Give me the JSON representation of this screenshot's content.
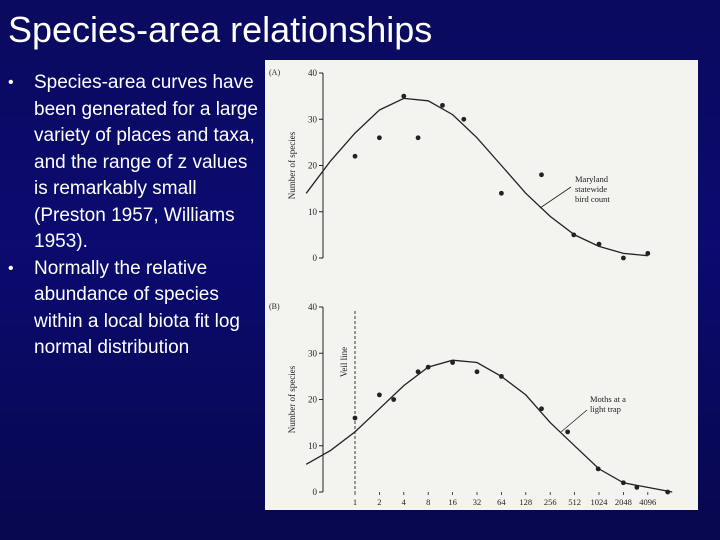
{
  "slide": {
    "title": "Species-area relationships",
    "bullets": [
      "Species-area curves have been generated for a large variety of places and taxa, and the range of z values is remarkably small (Preston 1957, Williams 1953).",
      "Normally the relative abundance of species within a local biota fit log normal distribution"
    ]
  },
  "colors": {
    "slide_background": "#0b0b70",
    "text": "#ffffff",
    "figure_background": "#f3f3ef",
    "ink": "#222222"
  },
  "chart_data": [
    {
      "type": "scatter",
      "panel_label": "(A)",
      "ylabel": "Number of species",
      "ylim": [
        0,
        40
      ],
      "yticks": [
        0,
        10,
        20,
        30,
        40
      ],
      "annotation": [
        "Maryland",
        "statewide",
        "bird count"
      ],
      "points": [
        {
          "x": 1,
          "y": 22
        },
        {
          "x": 2,
          "y": 26
        },
        {
          "x": 4,
          "y": 35
        },
        {
          "x": 6,
          "y": 26
        },
        {
          "x": 12,
          "y": 33
        },
        {
          "x": 22,
          "y": 30
        },
        {
          "x": 64,
          "y": 14
        },
        {
          "x": 200,
          "y": 18
        },
        {
          "x": 500,
          "y": 5
        },
        {
          "x": 1024,
          "y": 3
        },
        {
          "x": 2048,
          "y": 0
        },
        {
          "x": 4096,
          "y": 1
        }
      ],
      "fit_curve": [
        {
          "x": 0.25,
          "y": 14
        },
        {
          "x": 0.5,
          "y": 21
        },
        {
          "x": 1,
          "y": 27
        },
        {
          "x": 2,
          "y": 32
        },
        {
          "x": 4,
          "y": 34.5
        },
        {
          "x": 8,
          "y": 34
        },
        {
          "x": 16,
          "y": 31
        },
        {
          "x": 32,
          "y": 26
        },
        {
          "x": 64,
          "y": 20
        },
        {
          "x": 128,
          "y": 14
        },
        {
          "x": 256,
          "y": 9
        },
        {
          "x": 512,
          "y": 5
        },
        {
          "x": 1024,
          "y": 2.5
        },
        {
          "x": 2048,
          "y": 1
        },
        {
          "x": 4096,
          "y": 0.5
        }
      ]
    },
    {
      "type": "scatter",
      "panel_label": "(B)",
      "ylabel": "Number of species",
      "ylim": [
        0,
        40
      ],
      "yticks": [
        0,
        10,
        20,
        30,
        40
      ],
      "xscale": "log2",
      "xtick_labels": [
        "1",
        "2",
        "4",
        "8",
        "16",
        "32",
        "64",
        "128",
        "256",
        "512",
        "1024",
        "2048",
        "4096"
      ],
      "veil_line": {
        "x": 1,
        "label": "Veil line"
      },
      "annotation": [
        "Moths at a",
        "light trap"
      ],
      "points": [
        {
          "x": 1,
          "y": 16
        },
        {
          "x": 2,
          "y": 21
        },
        {
          "x": 3,
          "y": 20
        },
        {
          "x": 6,
          "y": 26
        },
        {
          "x": 8,
          "y": 27
        },
        {
          "x": 16,
          "y": 28
        },
        {
          "x": 32,
          "y": 26
        },
        {
          "x": 64,
          "y": 25
        },
        {
          "x": 200,
          "y": 18
        },
        {
          "x": 420,
          "y": 13
        },
        {
          "x": 1000,
          "y": 5
        },
        {
          "x": 2048,
          "y": 2
        },
        {
          "x": 3000,
          "y": 1
        },
        {
          "x": 7200,
          "y": 0
        }
      ],
      "fit_curve": [
        {
          "x": 0.25,
          "y": 6
        },
        {
          "x": 0.5,
          "y": 9
        },
        {
          "x": 1,
          "y": 13
        },
        {
          "x": 2,
          "y": 18
        },
        {
          "x": 4,
          "y": 23
        },
        {
          "x": 8,
          "y": 27
        },
        {
          "x": 16,
          "y": 28.5
        },
        {
          "x": 32,
          "y": 28
        },
        {
          "x": 64,
          "y": 25
        },
        {
          "x": 128,
          "y": 21
        },
        {
          "x": 256,
          "y": 15
        },
        {
          "x": 512,
          "y": 10
        },
        {
          "x": 1024,
          "y": 5
        },
        {
          "x": 2048,
          "y": 2
        },
        {
          "x": 4096,
          "y": 1
        },
        {
          "x": 8192,
          "y": 0
        }
      ]
    }
  ]
}
